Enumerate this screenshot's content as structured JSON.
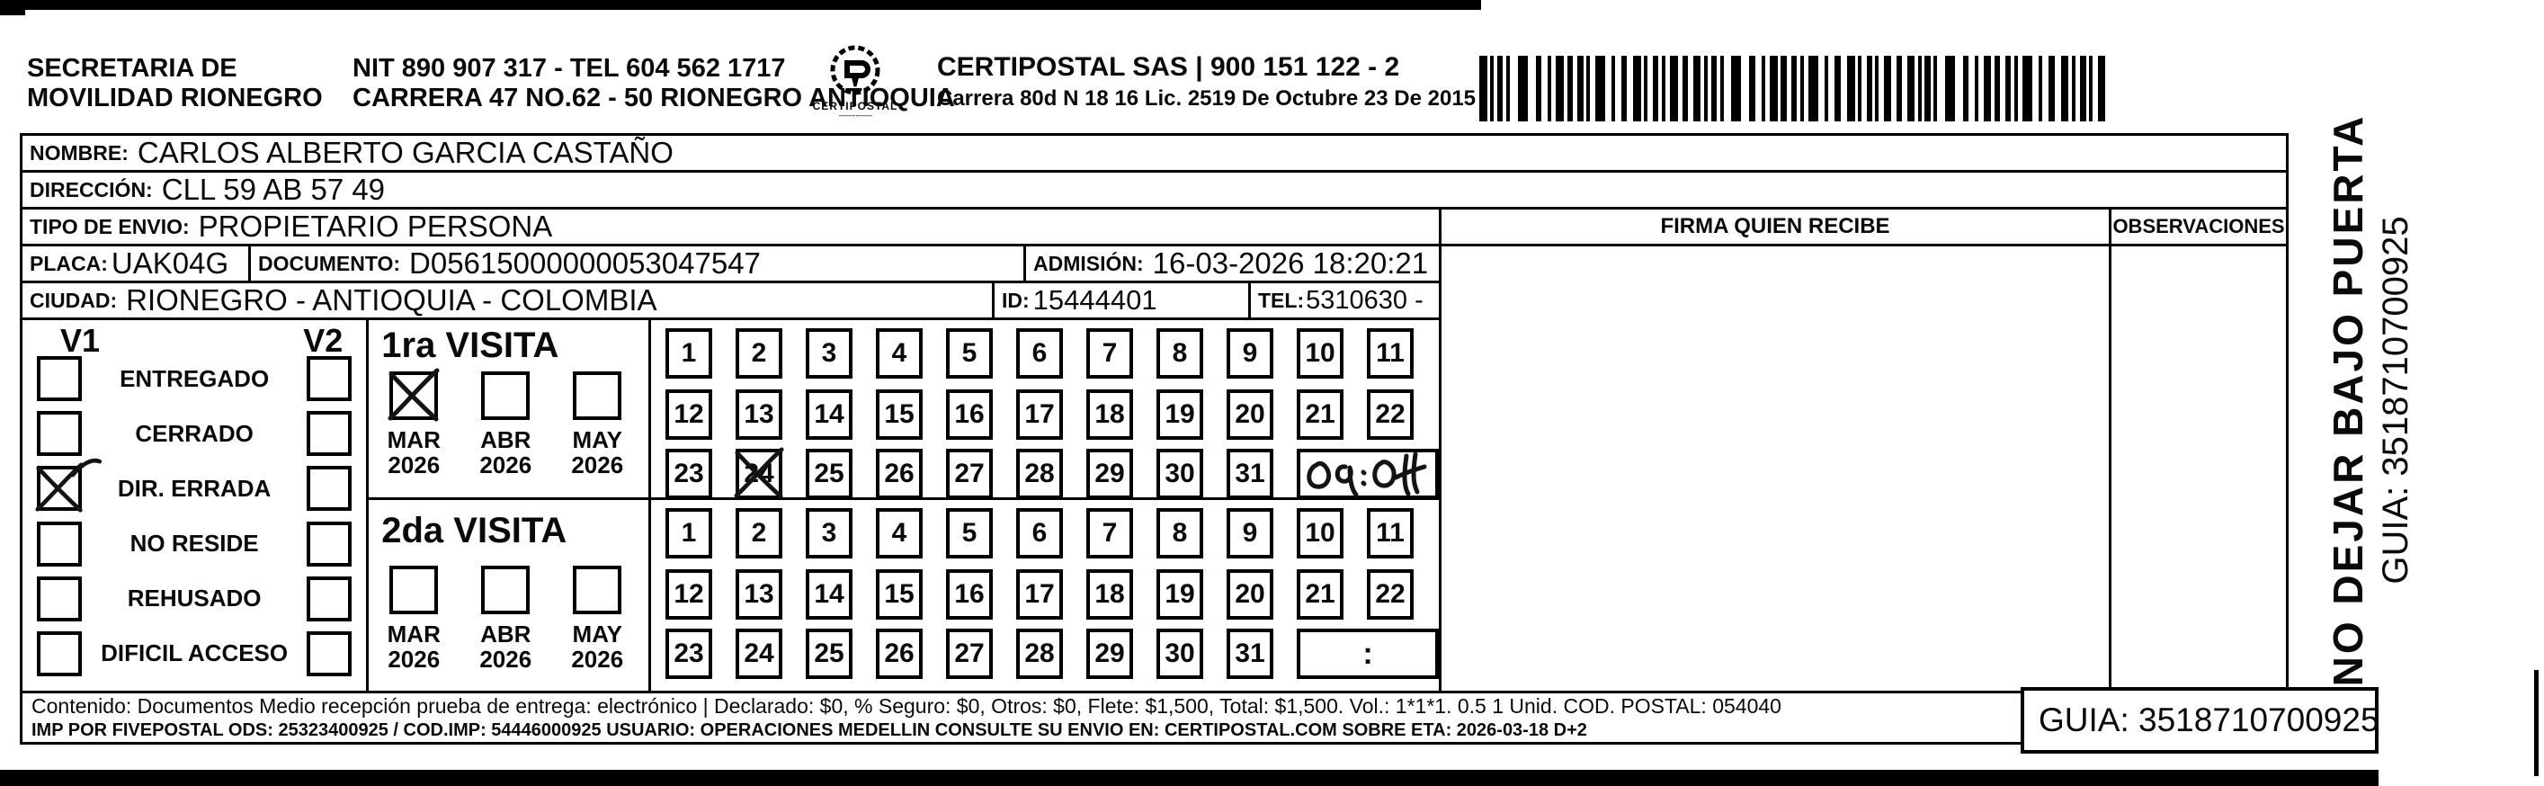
{
  "header": {
    "sender_line1": "SECRETARIA DE",
    "sender_line2": "MOVILIDAD RIONEGRO",
    "nit_line": "NIT 890 907 317 - TEL 604 562 1717",
    "address_line": "CARRERA 47 NO.62 - 50 RIONEGRO ANTIOQUIA",
    "logo_text": "CERTIPOSTAL",
    "carrier_line1": "CERTIPOSTAL SAS | 900 151 122 - 2",
    "carrier_line2": "Carrera 80d N 18 16  Lic. 2519 De Octubre 23 De 2015"
  },
  "form": {
    "nombre": {
      "label": "NOMBRE:",
      "value": "CARLOS ALBERTO GARCIA CASTAÑO"
    },
    "direccion": {
      "label": "DIRECCIÓN:",
      "value": "CLL 59 AB 57 49"
    },
    "tipo_envio": {
      "label": "TIPO DE ENVIO:",
      "value": "PROPIETARIO PERSONA"
    },
    "placa": {
      "label": "PLACA:",
      "value": "UAK04G"
    },
    "documento": {
      "label": "DOCUMENTO:",
      "value": "D05615000000053047547"
    },
    "admision": {
      "label": "ADMISIÓN:",
      "value": "16-03-2026 18:20:21"
    },
    "ciudad": {
      "label": "CIUDAD:",
      "value": "RIONEGRO - ANTIOQUIA - COLOMBIA"
    },
    "id": {
      "label": "ID:",
      "value": "15444401"
    },
    "tel": {
      "label": "TEL:",
      "value": "5310630 -"
    },
    "firma_header": "FIRMA QUIEN RECIBE",
    "observaciones_header": "OBSERVACIONES"
  },
  "status_panel": {
    "v1_header": "V1",
    "v2_header": "V2",
    "options": [
      {
        "label": "ENTREGADO",
        "v1_checked": false,
        "v2_checked": false
      },
      {
        "label": "CERRADO",
        "v1_checked": false,
        "v2_checked": false
      },
      {
        "label": "DIR. ERRADA",
        "v1_checked": true,
        "v2_checked": false
      },
      {
        "label": "NO RESIDE",
        "v1_checked": false,
        "v2_checked": false
      },
      {
        "label": "REHUSADO",
        "v1_checked": false,
        "v2_checked": false
      },
      {
        "label": "DIFICIL ACCESO",
        "v1_checked": false,
        "v2_checked": false
      }
    ]
  },
  "visits": {
    "days": [
      1,
      2,
      3,
      4,
      5,
      6,
      7,
      8,
      9,
      10,
      11,
      12,
      13,
      14,
      15,
      16,
      17,
      18,
      19,
      20,
      21,
      22,
      23,
      24,
      25,
      26,
      27,
      28,
      29,
      30,
      31
    ],
    "first": {
      "title": "1ra VISITA",
      "months": [
        {
          "label": "MAR",
          "year": "2026",
          "checked": true
        },
        {
          "label": "ABR",
          "year": "2026",
          "checked": false
        },
        {
          "label": "MAY",
          "year": "2026",
          "checked": false
        }
      ],
      "marked_day": 24,
      "handwritten_time": "09:04"
    },
    "second": {
      "title": "2da VISITA",
      "months": [
        {
          "label": "MAR",
          "year": "2026",
          "checked": false
        },
        {
          "label": "ABR",
          "year": "2026",
          "checked": false
        },
        {
          "label": "MAY",
          "year": "2026",
          "checked": false
        }
      ],
      "time_box_text": ":"
    }
  },
  "sidebar": {
    "warning": "NO DEJAR BAJO PUERTA",
    "guia": "GUIA: 3518710700925"
  },
  "footer": {
    "line1": "Contenido: Documentos Medio recepción prueba de entrega: electrónico | Declarado: $0, % Seguro: $0, Otros: $0, Flete: $1,500, Total: $1,500. Vol.: 1*1*1. 0.5 1 Unid. COD. POSTAL: 054040",
    "line2": "IMP POR FIVEPOSTAL ODS: 25323400925 / COD.IMP: 54446000925 USUARIO: OPERACIONES MEDELLIN CONSULTE SU ENVIO EN: CERTIPOSTAL.COM SOBRE ETA: 2026-03-18 D+2",
    "guia_box": "GUIA: 3518710700925"
  },
  "colors": {
    "ink": "#0a0a0a",
    "paper": "#ffffff"
  }
}
